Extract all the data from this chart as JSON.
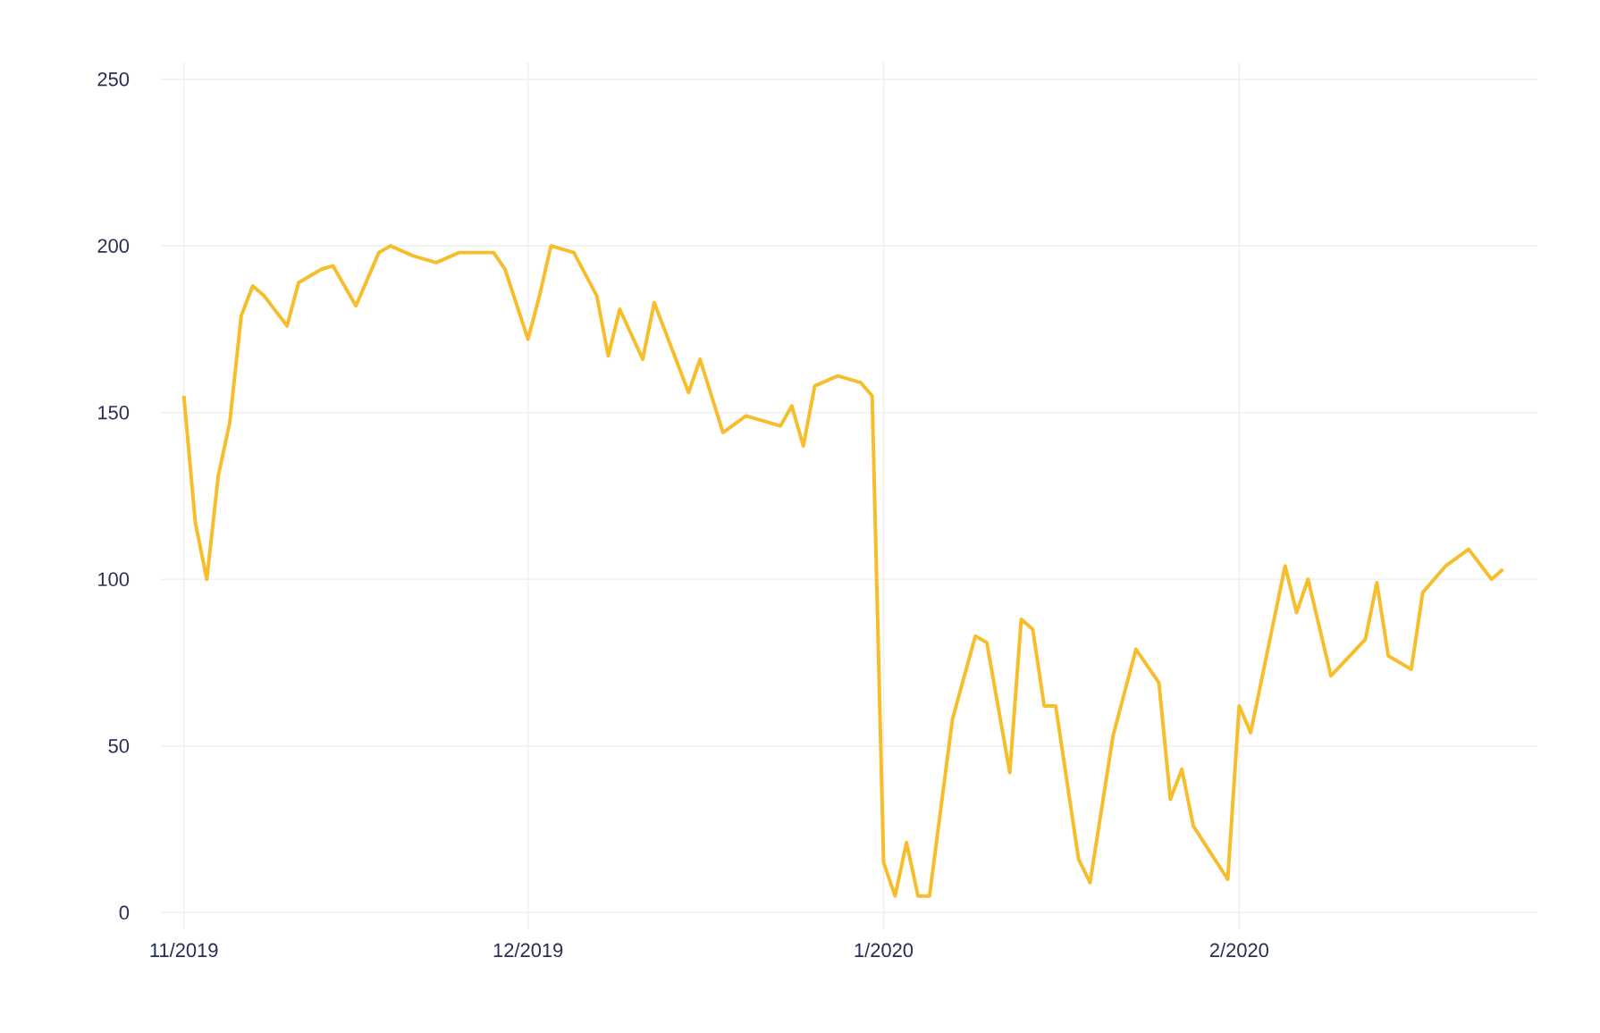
{
  "chart_data": {
    "type": "line",
    "color": "#f6be2c",
    "grid": true,
    "xlim": [
      "2019-10-30",
      "2020-02-27"
    ],
    "ylim": [
      -5,
      255
    ],
    "yticks": [
      0,
      50,
      100,
      150,
      200,
      250
    ],
    "xticks": [
      {
        "value": "2019-11-01",
        "label": "11/2019"
      },
      {
        "value": "2019-12-01",
        "label": "12/2019"
      },
      {
        "value": "2020-01-01",
        "label": "1/2020"
      },
      {
        "value": "2020-02-01",
        "label": "2/2020"
      }
    ],
    "x": [
      "2019-11-01",
      "2019-11-02",
      "2019-11-03",
      "2019-11-04",
      "2019-11-05",
      "2019-11-06",
      "2019-11-07",
      "2019-11-08",
      "2019-11-10",
      "2019-11-11",
      "2019-11-13",
      "2019-11-14",
      "2019-11-16",
      "2019-11-18",
      "2019-11-19",
      "2019-11-21",
      "2019-11-23",
      "2019-11-25",
      "2019-11-28",
      "2019-11-29",
      "2019-12-01",
      "2019-12-02",
      "2019-12-03",
      "2019-12-05",
      "2019-12-07",
      "2019-12-08",
      "2019-12-09",
      "2019-12-11",
      "2019-12-12",
      "2019-12-13",
      "2019-12-15",
      "2019-12-16",
      "2019-12-18",
      "2019-12-20",
      "2019-12-23",
      "2019-12-24",
      "2019-12-25",
      "2019-12-26",
      "2019-12-28",
      "2019-12-30",
      "2019-12-31",
      "2020-01-01",
      "2020-01-02",
      "2020-01-03",
      "2020-01-04",
      "2020-01-05",
      "2020-01-07",
      "2020-01-09",
      "2020-01-10",
      "2020-01-12",
      "2020-01-13",
      "2020-01-14",
      "2020-01-15",
      "2020-01-16",
      "2020-01-18",
      "2020-01-19",
      "2020-01-21",
      "2020-01-23",
      "2020-01-25",
      "2020-01-26",
      "2020-01-27",
      "2020-01-28",
      "2020-01-31",
      "2020-02-01",
      "2020-02-02",
      "2020-02-05",
      "2020-02-06",
      "2020-02-07",
      "2020-02-09",
      "2020-02-12",
      "2020-02-13",
      "2020-02-14",
      "2020-02-16",
      "2020-02-17",
      "2020-02-19",
      "2020-02-21",
      "2020-02-23",
      "2020-02-24"
    ],
    "values": [
      155,
      117,
      100,
      131,
      147,
      179,
      188,
      185,
      176,
      189,
      193,
      194,
      182,
      198,
      200,
      197,
      195,
      198,
      198,
      193,
      172,
      185,
      200,
      198,
      185,
      167,
      181,
      166,
      183,
      174,
      156,
      166,
      144,
      149,
      146,
      152,
      140,
      158,
      161,
      159,
      155,
      15,
      5,
      21,
      5,
      5,
      58,
      83,
      81,
      42,
      88,
      85,
      62,
      62,
      16,
      9,
      53,
      79,
      69,
      34,
      43,
      26,
      10,
      62,
      54,
      104,
      90,
      100,
      71,
      82,
      99,
      77,
      73,
      96,
      104,
      109,
      100,
      103
    ]
  }
}
